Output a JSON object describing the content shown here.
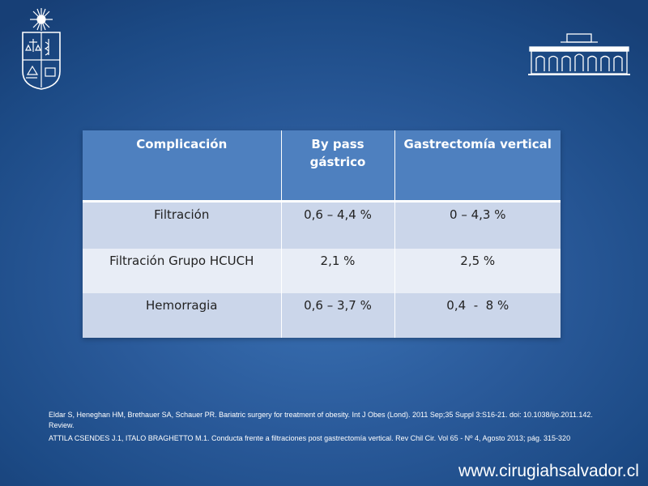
{
  "table": {
    "headers": [
      "Complicación",
      "By pass\ngástrico",
      "Gastrectomía vertical"
    ],
    "rows": [
      [
        "Filtración",
        "0,6 – 4,4 %",
        "0 – 4,3 %"
      ],
      [
        "Filtración Grupo HCUCH",
        "2,1 %",
        "2,5 %"
      ],
      [
        "Hemorragia",
        "0,6 – 3,7 %",
        "0,4  -  8 %"
      ]
    ]
  },
  "references": [
    "Eldar S, Heneghan HM, Brethauer SA, Schauer PR. Bariatric surgery for treatment of obesity. Int J Obes (Lond). 2011 Sep;35 Suppl 3:S16-21. doi: 10.1038/ijo.2011.142. Review.",
    "ATTILA CSENDES  J.1, ITALO BRAGHETTO  M.1. Conducta frente a filtraciones post gastrectomía  vertical. Rev Chil Cir. Vol 65 - Nº 4, Agosto  2013; pág. 315-320"
  ],
  "footer": {
    "website": "www.cirugiahsalvador.cl"
  },
  "logos": {
    "left": "university-crest-icon",
    "right": "hospital-building-icon"
  }
}
